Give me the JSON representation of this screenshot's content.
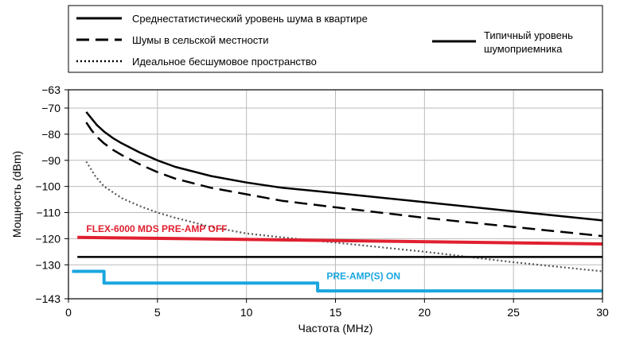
{
  "chart_data": {
    "type": "line",
    "title": "",
    "xlabel": "Частота (MHz)",
    "ylabel": "Мощность (dBm)",
    "xlim": [
      0,
      30
    ],
    "ylim": [
      -143,
      -63
    ],
    "x_ticks": [
      0,
      5,
      10,
      15,
      20,
      25,
      30
    ],
    "y_ticks": [
      -63,
      -70,
      -80,
      -90,
      -100,
      -110,
      -120,
      -130,
      -143
    ],
    "grid": true,
    "legend_position": "top",
    "series": [
      {
        "name": "Среднестатистический уровень шума в квартире",
        "style": "solid",
        "color": "#000000",
        "x": [
          1,
          1.3,
          1.6,
          2,
          2.5,
          3,
          4,
          5,
          6,
          8,
          10,
          12,
          15,
          20,
          25,
          30
        ],
        "y": [
          -71.5,
          -74,
          -76.5,
          -79,
          -81.5,
          -83.5,
          -87,
          -90,
          -92.5,
          -96,
          -98.5,
          -100.5,
          -102.5,
          -106,
          -109.5,
          -113
        ]
      },
      {
        "name": "Шумы в сельской местности",
        "style": "dashed",
        "color": "#000000",
        "x": [
          1,
          1.3,
          1.6,
          2,
          2.5,
          3,
          4,
          5,
          6,
          8,
          10,
          12,
          15,
          20,
          25,
          30
        ],
        "y": [
          -75.5,
          -78.5,
          -81,
          -83.5,
          -86,
          -88,
          -91.5,
          -94.5,
          -97,
          -100.5,
          -103,
          -105.5,
          -108,
          -112,
          -115.5,
          -119
        ]
      },
      {
        "name": "Идеальное бесшумовое пространство",
        "style": "dotted",
        "color": "#555555",
        "x": [
          1,
          1.5,
          2,
          3,
          4,
          5,
          6,
          8,
          10,
          12,
          15,
          20,
          25,
          30
        ],
        "y": [
          -90.5,
          -96,
          -100,
          -104.5,
          -107.5,
          -110,
          -112,
          -115.5,
          -118,
          -119.5,
          -121.5,
          -125,
          -129,
          -132.5
        ]
      },
      {
        "name": "Типичный уровень шумоприемника",
        "style": "solid",
        "color": "#000000",
        "x": [
          0.5,
          30
        ],
        "y": [
          -127,
          -127
        ]
      },
      {
        "name": "FLEX-6000 MDS PRE-AMP OFF",
        "style": "solid",
        "color": "#e02030",
        "x": [
          0.5,
          30
        ],
        "y": [
          -119.5,
          -122
        ]
      },
      {
        "name": "PRE-AMP(S) ON",
        "style": "step",
        "color": "#1aa6e0",
        "x": [
          0.2,
          2,
          2,
          14,
          14,
          30
        ],
        "y": [
          -132.5,
          -132.5,
          -137,
          -137,
          -140,
          -140
        ]
      }
    ],
    "annotations": [
      {
        "text": "FLEX-6000 MDS PRE-AMP OFF",
        "color": "#e02030",
        "x": 1.0,
        "y": -117.5
      },
      {
        "text": "PRE-AMP(S) ON",
        "color": "#1aa6e0",
        "x": 14.5,
        "y": -135.5
      }
    ],
    "legend": {
      "items": [
        {
          "label": "Среднестатистический уровень шума в квартире",
          "style": "solid"
        },
        {
          "label": "Шумы в сельской местности",
          "style": "dashed"
        },
        {
          "label": "Идеальное бесшумовое пространство",
          "style": "dotted"
        }
      ],
      "side_item": {
        "label_lines": [
          "Типичный уровень",
          "шумоприемника"
        ],
        "style": "solid"
      }
    },
    "colors": {
      "axis": "#000000",
      "grid": "#bbbbbb",
      "red": "#e02030",
      "blue": "#1aa6e0"
    }
  }
}
